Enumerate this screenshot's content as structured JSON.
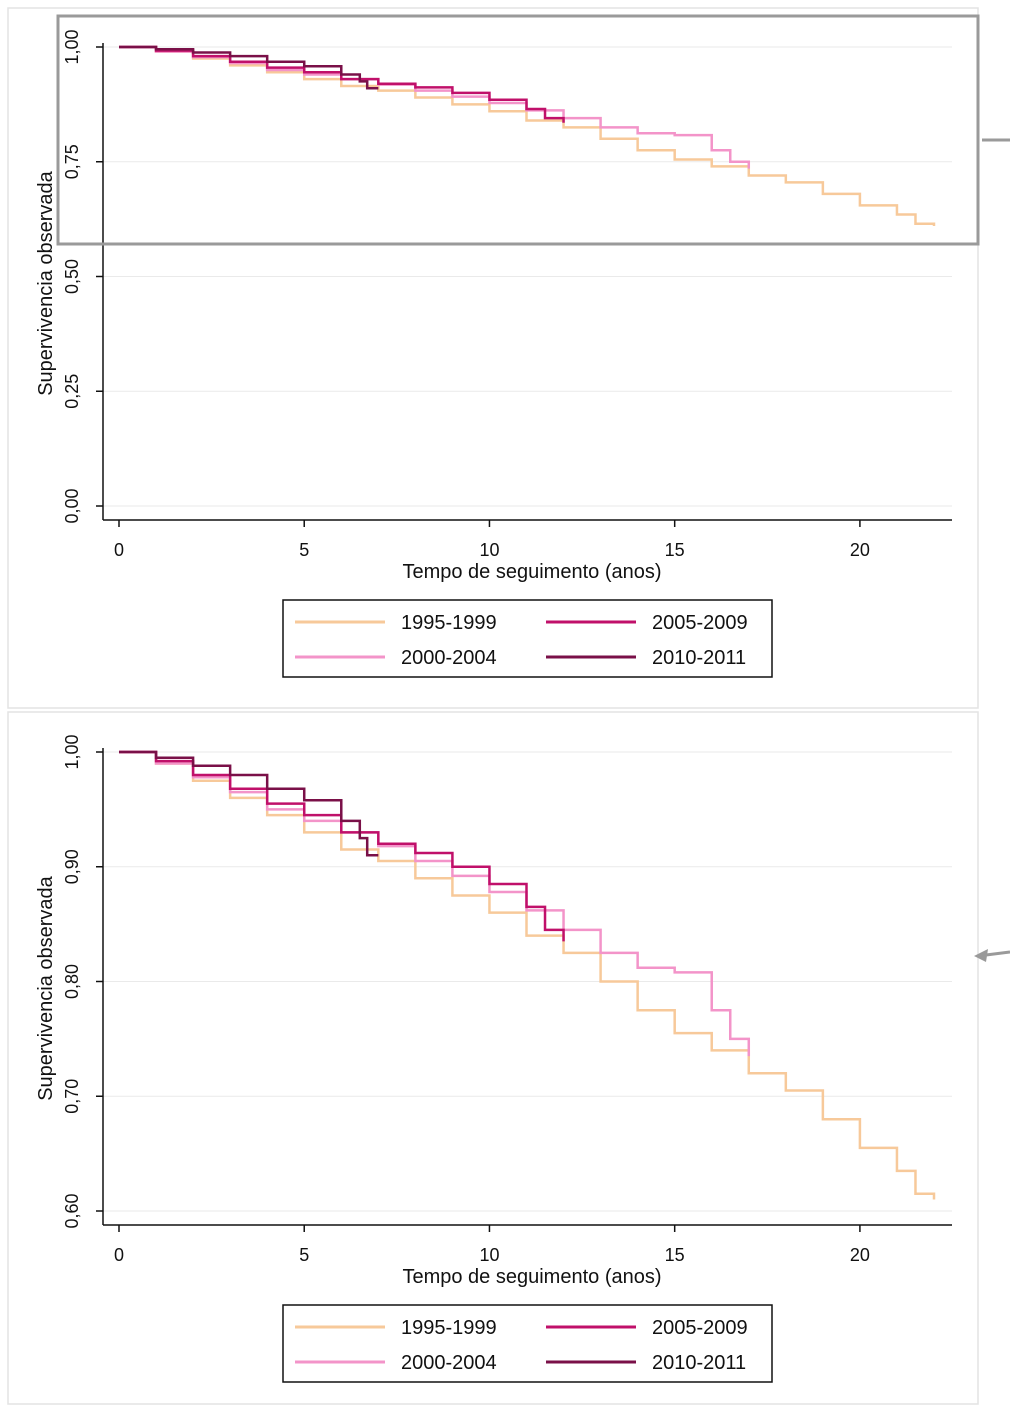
{
  "chart_data": [
    {
      "type": "line",
      "xlabel": "Tempo de seguimento (anos)",
      "ylabel": "Supervivencia observada",
      "xlim": [
        0,
        22.5
      ],
      "ylim": [
        0,
        1.0
      ],
      "xticks": [
        "0",
        "5",
        "10",
        "15",
        "20"
      ],
      "yticks": [
        "0,00",
        "0,25",
        "0,50",
        "0,75",
        "1,00"
      ],
      "grid": true,
      "legend_position": "bottom",
      "highlight_box_y_range": [
        0.59,
        1.0
      ],
      "series": [
        {
          "name": "1995-1999",
          "color": "#F7C99A",
          "points": [
            [
              0,
              1.0
            ],
            [
              1,
              0.99
            ],
            [
              2,
              0.975
            ],
            [
              3,
              0.96
            ],
            [
              4,
              0.945
            ],
            [
              5,
              0.93
            ],
            [
              6,
              0.915
            ],
            [
              7,
              0.905
            ],
            [
              8,
              0.89
            ],
            [
              9,
              0.875
            ],
            [
              10,
              0.86
            ],
            [
              11,
              0.84
            ],
            [
              12,
              0.825
            ],
            [
              13,
              0.8
            ],
            [
              14,
              0.775
            ],
            [
              15,
              0.755
            ],
            [
              16,
              0.74
            ],
            [
              17,
              0.72
            ],
            [
              18,
              0.705
            ],
            [
              19,
              0.68
            ],
            [
              20,
              0.655
            ],
            [
              21,
              0.635
            ],
            [
              21.5,
              0.615
            ],
            [
              22,
              0.61
            ]
          ]
        },
        {
          "name": "2000-2004",
          "color": "#F394C9",
          "points": [
            [
              0,
              1.0
            ],
            [
              1,
              0.99
            ],
            [
              2,
              0.978
            ],
            [
              3,
              0.965
            ],
            [
              4,
              0.95
            ],
            [
              5,
              0.94
            ],
            [
              6,
              0.93
            ],
            [
              7,
              0.918
            ],
            [
              8,
              0.905
            ],
            [
              9,
              0.892
            ],
            [
              10,
              0.878
            ],
            [
              11,
              0.862
            ],
            [
              12,
              0.845
            ],
            [
              13,
              0.825
            ],
            [
              14,
              0.812
            ],
            [
              15,
              0.808
            ],
            [
              16,
              0.775
            ],
            [
              16.5,
              0.75
            ],
            [
              17,
              0.735
            ]
          ]
        },
        {
          "name": "2005-2009",
          "color": "#C0106A",
          "points": [
            [
              0,
              1.0
            ],
            [
              1,
              0.992
            ],
            [
              2,
              0.98
            ],
            [
              3,
              0.968
            ],
            [
              4,
              0.955
            ],
            [
              5,
              0.945
            ],
            [
              6,
              0.93
            ],
            [
              7,
              0.92
            ],
            [
              8,
              0.912
            ],
            [
              9,
              0.9
            ],
            [
              10,
              0.885
            ],
            [
              11,
              0.865
            ],
            [
              11.5,
              0.845
            ],
            [
              12,
              0.835
            ]
          ]
        },
        {
          "name": "2010-2011",
          "color": "#7A1048",
          "points": [
            [
              0,
              1.0
            ],
            [
              1,
              0.995
            ],
            [
              2,
              0.988
            ],
            [
              3,
              0.98
            ],
            [
              4,
              0.968
            ],
            [
              5,
              0.958
            ],
            [
              6,
              0.94
            ],
            [
              6.5,
              0.925
            ],
            [
              6.7,
              0.91
            ],
            [
              7,
              0.91
            ]
          ]
        }
      ]
    },
    {
      "type": "line",
      "xlabel": "Tempo de seguimento (anos)",
      "ylabel": "Supervivencia observada",
      "xlim": [
        0,
        22.5
      ],
      "ylim": [
        0.6,
        1.0
      ],
      "xticks": [
        "0",
        "5",
        "10",
        "15",
        "20"
      ],
      "yticks": [
        "0,60",
        "0,70",
        "0,80",
        "0,90",
        "1,00"
      ],
      "grid": true,
      "legend_position": "bottom",
      "series": [
        {
          "name": "1995-1999",
          "color": "#F7C99A",
          "points": [
            [
              0,
              1.0
            ],
            [
              1,
              0.99
            ],
            [
              2,
              0.975
            ],
            [
              3,
              0.96
            ],
            [
              4,
              0.945
            ],
            [
              5,
              0.93
            ],
            [
              6,
              0.915
            ],
            [
              7,
              0.905
            ],
            [
              8,
              0.89
            ],
            [
              9,
              0.875
            ],
            [
              10,
              0.86
            ],
            [
              11,
              0.84
            ],
            [
              12,
              0.825
            ],
            [
              13,
              0.8
            ],
            [
              14,
              0.775
            ],
            [
              15,
              0.755
            ],
            [
              16,
              0.74
            ],
            [
              17,
              0.72
            ],
            [
              18,
              0.705
            ],
            [
              19,
              0.68
            ],
            [
              20,
              0.655
            ],
            [
              21,
              0.635
            ],
            [
              21.5,
              0.615
            ],
            [
              22,
              0.61
            ]
          ]
        },
        {
          "name": "2000-2004",
          "color": "#F394C9",
          "points": [
            [
              0,
              1.0
            ],
            [
              1,
              0.99
            ],
            [
              2,
              0.978
            ],
            [
              3,
              0.965
            ],
            [
              4,
              0.95
            ],
            [
              5,
              0.94
            ],
            [
              6,
              0.93
            ],
            [
              7,
              0.918
            ],
            [
              8,
              0.905
            ],
            [
              9,
              0.892
            ],
            [
              10,
              0.878
            ],
            [
              11,
              0.862
            ],
            [
              12,
              0.845
            ],
            [
              13,
              0.825
            ],
            [
              14,
              0.812
            ],
            [
              15,
              0.808
            ],
            [
              16,
              0.775
            ],
            [
              16.5,
              0.75
            ],
            [
              17,
              0.735
            ]
          ]
        },
        {
          "name": "2005-2009",
          "color": "#C0106A",
          "points": [
            [
              0,
              1.0
            ],
            [
              1,
              0.992
            ],
            [
              2,
              0.98
            ],
            [
              3,
              0.968
            ],
            [
              4,
              0.955
            ],
            [
              5,
              0.945
            ],
            [
              6,
              0.93
            ],
            [
              7,
              0.92
            ],
            [
              8,
              0.912
            ],
            [
              9,
              0.9
            ],
            [
              10,
              0.885
            ],
            [
              11,
              0.865
            ],
            [
              11.5,
              0.845
            ],
            [
              12,
              0.835
            ]
          ]
        },
        {
          "name": "2010-2011",
          "color": "#7A1048",
          "points": [
            [
              0,
              1.0
            ],
            [
              1,
              0.995
            ],
            [
              2,
              0.988
            ],
            [
              3,
              0.98
            ],
            [
              4,
              0.968
            ],
            [
              5,
              0.958
            ],
            [
              6,
              0.94
            ],
            [
              6.5,
              0.925
            ],
            [
              6.7,
              0.91
            ],
            [
              7,
              0.91
            ]
          ]
        }
      ]
    }
  ],
  "colors": {
    "axis": "#111111",
    "grid": "#eaeaea",
    "panel_border": "#e3e3e3",
    "highlight_box": "#9a9a9a",
    "arrow": "#9a9a9a"
  },
  "icons": {
    "connector_arrow": "arrow-left-icon"
  }
}
